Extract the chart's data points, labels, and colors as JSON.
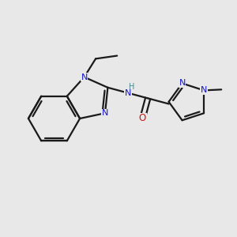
{
  "bg_color": "#e8e8e8",
  "bond_color": "#1a1a1a",
  "N_color": "#1414cc",
  "O_color": "#cc1414",
  "NH_color": "#4a8888",
  "lw": 1.6,
  "fs": 8.5,
  "figsize": [
    3.0,
    3.0
  ],
  "dpi": 100,
  "xlim": [
    -2.8,
    2.8
  ],
  "ylim": [
    -2.2,
    2.2
  ]
}
